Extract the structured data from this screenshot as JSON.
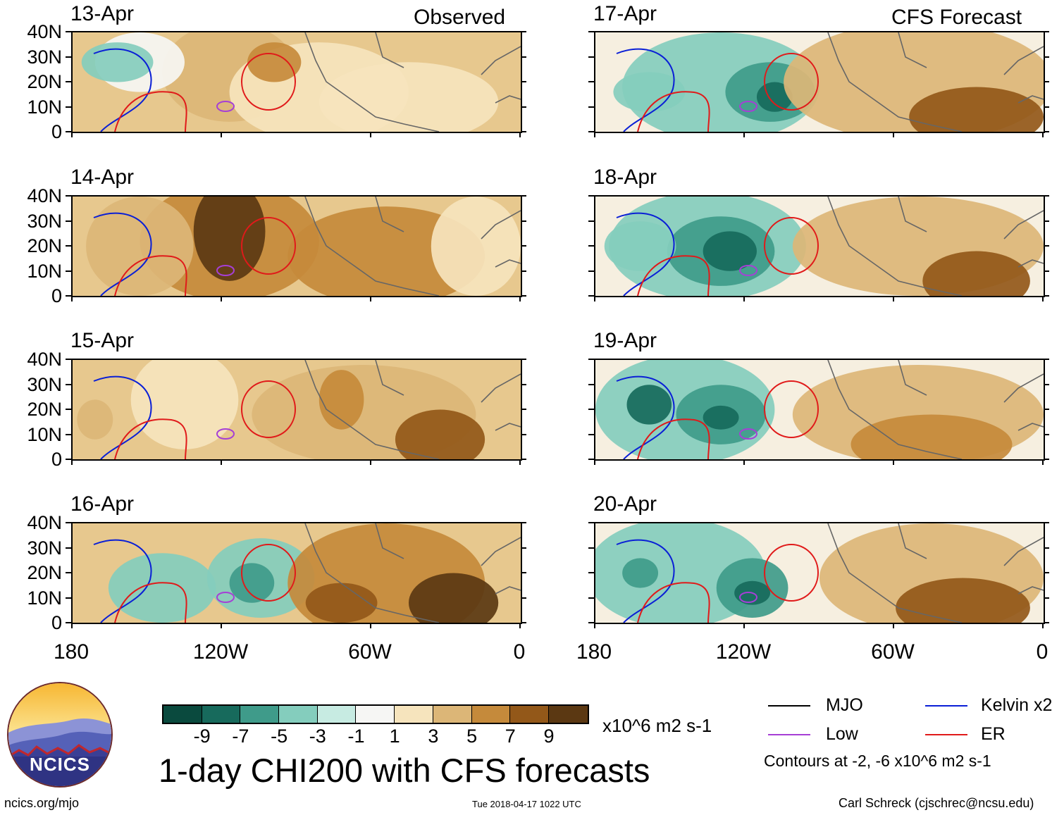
{
  "chart_data": {
    "type": "heatmap",
    "title": "1-day CHI200 with CFS forecasts",
    "variable": "CHI200",
    "units": "x10^6 m2 s-1",
    "y_tick_labels": [
      "40N",
      "30N",
      "20N",
      "10N",
      "0"
    ],
    "x_tick_labels": [
      "180",
      "120W",
      "60W",
      "0"
    ],
    "ylim": [
      0,
      40
    ],
    "xlim": [
      -180,
      0
    ],
    "observed_label": "Observed",
    "forecast_label": "CFS Forecast",
    "panels": [
      {
        "date": "13-Apr",
        "kind": "observed"
      },
      {
        "date": "14-Apr",
        "kind": "observed"
      },
      {
        "date": "15-Apr",
        "kind": "observed"
      },
      {
        "date": "16-Apr",
        "kind": "observed"
      },
      {
        "date": "17-Apr",
        "kind": "forecast"
      },
      {
        "date": "18-Apr",
        "kind": "forecast"
      },
      {
        "date": "19-Apr",
        "kind": "forecast"
      },
      {
        "date": "20-Apr",
        "kind": "forecast"
      }
    ],
    "colorbar": {
      "labels": [
        "-9",
        "-7",
        "-5",
        "-3",
        "-1",
        "1",
        "3",
        "5",
        "7",
        "9"
      ],
      "colors": [
        "#0a4a3e",
        "#176a5c",
        "#3f9b8a",
        "#84cdbd",
        "#c7ebe2",
        "#f6f6f4",
        "#f6e4bd",
        "#dcb677",
        "#c58a3b",
        "#935819",
        "#5b3812"
      ]
    },
    "legend": {
      "items": [
        {
          "label": "MJO",
          "color": "#000000"
        },
        {
          "label": "Kelvin x2",
          "color": "#0a1fd6"
        },
        {
          "label": "Low",
          "color": "#a63fd6"
        },
        {
          "label": "ER",
          "color": "#e01a1a"
        }
      ],
      "note": "Contours at -2, -6 x10^6 m2 s-1"
    }
  },
  "footer": {
    "left": "ncics.org/mjo",
    "center": "Tue 2018-04-17 1022 UTC",
    "right": "Carl Schreck (cjschrec@ncsu.edu)",
    "logo_text": "NCICS"
  }
}
